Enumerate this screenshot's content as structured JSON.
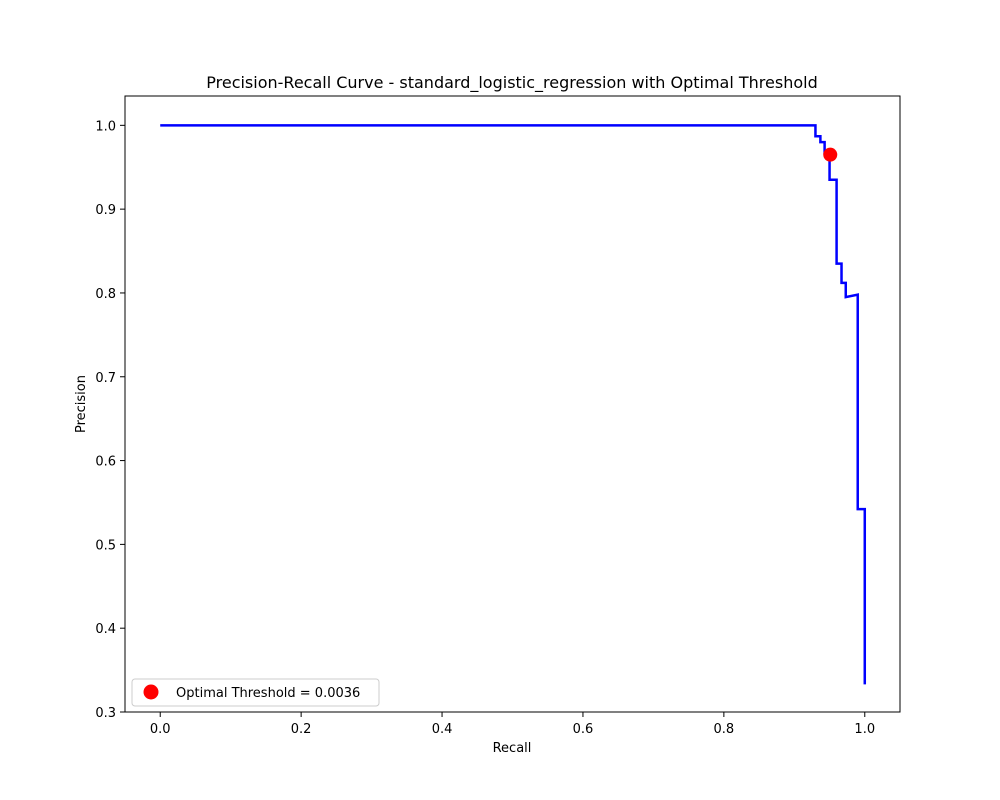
{
  "chart_data": {
    "type": "line",
    "title": "Precision-Recall Curve - standard_logistic_regression with Optimal Threshold",
    "xlabel": "Recall",
    "ylabel": "Precision",
    "xlim": [
      -0.05,
      1.05
    ],
    "ylim": [
      0.3,
      1.035
    ],
    "xticks": [
      0.0,
      0.2,
      0.4,
      0.6,
      0.8,
      1.0
    ],
    "xtick_labels": [
      "0.0",
      "0.2",
      "0.4",
      "0.6",
      "0.8",
      "1.0"
    ],
    "yticks": [
      0.3,
      0.4,
      0.5,
      0.6,
      0.7,
      0.8,
      0.9,
      1.0
    ],
    "ytick_labels": [
      "0.3",
      "0.4",
      "0.5",
      "0.6",
      "0.7",
      "0.8",
      "0.9",
      "1.0"
    ],
    "grid": false,
    "series": [
      {
        "color": "#0000ff",
        "drawstyle": "steps-post",
        "x": [
          0.0,
          0.93,
          0.93,
          0.937,
          0.937,
          0.943,
          0.943,
          0.95,
          0.95,
          0.96,
          0.96,
          0.967,
          0.967,
          0.973,
          0.973,
          0.99,
          0.99,
          0.993,
          0.993,
          1.0,
          1.0
        ],
        "y": [
          1.0,
          1.0,
          0.987,
          0.987,
          0.98,
          0.98,
          0.967,
          0.967,
          0.935,
          0.935,
          0.835,
          0.835,
          0.812,
          0.812,
          0.795,
          0.798,
          0.542,
          0.542,
          0.542,
          0.542,
          0.333
        ]
      }
    ],
    "marker": {
      "x": 0.951,
      "y": 0.965,
      "color": "#ff0000"
    },
    "legend": {
      "location": "lower left",
      "entries": [
        {
          "label": "Optimal Threshold = 0.0036",
          "color": "#ff0000",
          "marker": "circle"
        }
      ]
    }
  }
}
